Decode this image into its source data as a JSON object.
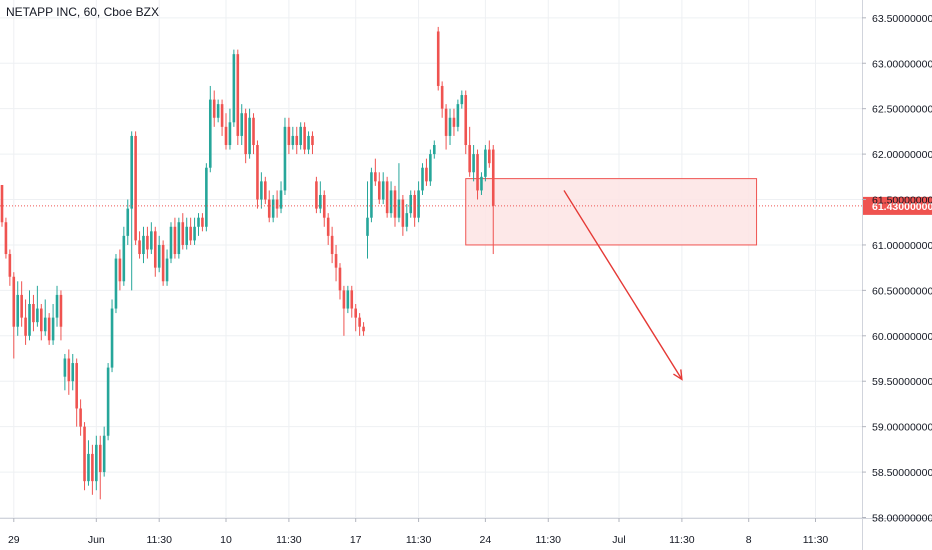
{
  "chart_data": {
    "type": "candlestick",
    "title": "NETAPP INC, 60, Cboe BZX",
    "y_ticks": [
      "58.00000000",
      "58.50000000",
      "59.00000000",
      "59.50000000",
      "60.00000000",
      "60.50000000",
      "61.00000000",
      "61.50000000",
      "62.00000000",
      "62.50000000",
      "63.00000000",
      "63.50000000"
    ],
    "y_tick_values": [
      58.0,
      58.5,
      59.0,
      59.5,
      60.0,
      60.5,
      61.0,
      61.5,
      62.0,
      62.5,
      63.0,
      63.5
    ],
    "ylim": [
      57.95,
      63.62
    ],
    "x_ticks": [
      {
        "label": "29",
        "bar": 3
      },
      {
        "label": "Jun",
        "bar": 24
      },
      {
        "label": "11:30",
        "bar": 40
      },
      {
        "label": "10",
        "bar": 57
      },
      {
        "label": "11:30",
        "bar": 73
      },
      {
        "label": "17",
        "bar": 90
      },
      {
        "label": "11:30",
        "bar": 106
      },
      {
        "label": "24",
        "bar": 123
      },
      {
        "label": "11:30",
        "bar": 139
      },
      {
        "label": "Jul",
        "bar": 157
      },
      {
        "label": "11:30",
        "bar": 173
      },
      {
        "label": "8",
        "bar": 190
      },
      {
        "label": "11:30",
        "bar": 207
      }
    ],
    "current_price": 61.43,
    "current_price_label": "61.43000000",
    "colors": {
      "up": "#26a69a",
      "down": "#ef5350",
      "arrow": "#e53935",
      "zone_fill": "#fde4e4",
      "zone_border": "#ef5350",
      "price_tag": "#ef5350"
    },
    "zone": {
      "bar_start": 118,
      "bar_end": 192,
      "top": 61.73,
      "bottom": 61.0
    },
    "arrow": {
      "from_bar": 143,
      "from_price": 61.6,
      "to_bar": 173,
      "to_price": 59.52
    },
    "candles": [
      [
        61.66,
        61.25,
        61.66,
        61.2
      ],
      [
        61.25,
        60.9,
        61.3,
        60.85
      ],
      [
        60.9,
        60.65,
        60.95,
        60.55
      ],
      [
        60.65,
        60.1,
        60.7,
        59.75
      ],
      [
        60.1,
        60.45,
        60.6,
        60.0
      ],
      [
        60.45,
        60.2,
        60.6,
        60.1
      ],
      [
        60.2,
        60.0,
        60.4,
        59.9
      ],
      [
        60.0,
        60.35,
        60.5,
        59.95
      ],
      [
        60.35,
        60.15,
        60.45,
        60.05
      ],
      [
        60.15,
        60.3,
        60.55,
        60.1
      ],
      [
        60.3,
        60.05,
        60.35,
        59.95
      ],
      [
        60.05,
        60.2,
        60.4,
        60.0
      ],
      [
        60.2,
        59.95,
        60.25,
        59.9
      ],
      [
        59.95,
        60.2,
        60.35,
        59.9
      ],
      [
        60.2,
        60.45,
        60.55,
        60.1
      ],
      [
        60.45,
        60.1,
        60.5,
        59.95
      ],
      [
        59.55,
        59.75,
        59.8,
        59.4
      ],
      [
        59.75,
        59.5,
        59.85,
        59.35
      ],
      [
        59.5,
        59.7,
        59.8,
        59.4
      ],
      [
        59.7,
        59.2,
        59.75,
        59.0
      ],
      [
        59.2,
        59.0,
        59.3,
        58.9
      ],
      [
        59.0,
        58.4,
        59.05,
        58.3
      ],
      [
        58.4,
        58.7,
        58.85,
        58.35
      ],
      [
        58.7,
        58.4,
        58.8,
        58.25
      ],
      [
        58.4,
        58.8,
        58.9,
        58.3
      ],
      [
        58.8,
        58.5,
        58.9,
        58.2
      ],
      [
        58.5,
        58.9,
        59.0,
        58.45
      ],
      [
        58.9,
        59.65,
        59.7,
        58.85
      ],
      [
        59.65,
        60.3,
        60.4,
        59.6
      ],
      [
        60.3,
        60.85,
        60.9,
        60.25
      ],
      [
        60.85,
        60.6,
        60.95,
        60.5
      ],
      [
        60.6,
        61.1,
        61.2,
        60.55
      ],
      [
        61.1,
        61.4,
        61.5,
        61.0
      ],
      [
        61.4,
        62.2,
        62.25,
        60.5
      ],
      [
        62.2,
        61.05,
        62.25,
        61.0
      ],
      [
        61.05,
        60.9,
        61.15,
        60.85
      ],
      [
        60.9,
        61.1,
        61.2,
        60.8
      ],
      [
        61.1,
        60.95,
        61.2,
        60.85
      ],
      [
        60.95,
        61.15,
        61.25,
        60.9
      ],
      [
        61.15,
        60.75,
        61.2,
        60.65
      ],
      [
        60.75,
        61.0,
        61.1,
        60.7
      ],
      [
        61.0,
        60.6,
        61.05,
        60.55
      ],
      [
        60.6,
        60.85,
        60.95,
        60.55
      ],
      [
        60.85,
        61.2,
        61.25,
        60.8
      ],
      [
        61.2,
        60.9,
        61.3,
        60.85
      ],
      [
        60.9,
        61.25,
        61.3,
        60.85
      ],
      [
        61.25,
        61.0,
        61.35,
        60.95
      ],
      [
        61.0,
        61.2,
        61.3,
        60.95
      ],
      [
        61.2,
        61.05,
        61.3,
        61.0
      ],
      [
        61.05,
        61.2,
        61.3,
        61.0
      ],
      [
        61.2,
        61.3,
        61.35,
        61.1
      ],
      [
        61.3,
        61.2,
        61.35,
        61.15
      ],
      [
        61.2,
        61.85,
        61.9,
        61.15
      ],
      [
        61.85,
        62.6,
        62.75,
        61.8
      ],
      [
        62.6,
        62.4,
        62.7,
        62.3
      ],
      [
        62.4,
        62.55,
        62.6,
        62.35
      ],
      [
        62.55,
        62.3,
        62.6,
        62.2
      ],
      [
        62.3,
        62.1,
        62.45,
        62.05
      ],
      [
        62.1,
        62.35,
        62.5,
        62.05
      ],
      [
        62.35,
        63.1,
        63.15,
        62.3
      ],
      [
        63.1,
        62.2,
        63.15,
        62.1
      ],
      [
        62.2,
        62.45,
        62.55,
        62.1
      ],
      [
        62.45,
        62.0,
        62.5,
        61.9
      ],
      [
        62.0,
        62.4,
        62.5,
        61.95
      ],
      [
        62.4,
        62.1,
        62.45,
        62.0
      ],
      [
        62.1,
        61.5,
        62.15,
        61.4
      ],
      [
        61.5,
        61.7,
        61.8,
        61.4
      ],
      [
        61.7,
        61.5,
        61.75,
        61.45
      ],
      [
        61.5,
        61.3,
        61.6,
        61.25
      ],
      [
        61.3,
        61.5,
        61.55,
        61.25
      ],
      [
        61.5,
        61.4,
        61.6,
        61.3
      ],
      [
        61.4,
        61.6,
        61.7,
        61.35
      ],
      [
        61.6,
        62.3,
        62.4,
        61.55
      ],
      [
        62.3,
        62.1,
        62.4,
        62.0
      ],
      [
        62.1,
        62.2,
        62.3,
        62.05
      ],
      [
        62.2,
        62.1,
        62.3,
        62.0
      ],
      [
        62.1,
        62.3,
        62.35,
        62.05
      ],
      [
        62.3,
        62.05,
        62.35,
        62.0
      ],
      [
        62.05,
        62.2,
        62.25,
        62.0
      ],
      [
        62.2,
        62.1,
        62.25,
        62.0
      ],
      [
        61.7,
        61.4,
        61.75,
        61.35
      ],
      [
        61.4,
        61.55,
        61.7,
        61.35
      ],
      [
        61.55,
        61.3,
        61.6,
        61.2
      ],
      [
        61.3,
        61.1,
        61.35,
        61.0
      ],
      [
        61.1,
        60.9,
        61.2,
        60.8
      ],
      [
        60.9,
        60.75,
        61.0,
        60.6
      ],
      [
        60.75,
        60.5,
        60.8,
        60.4
      ],
      [
        60.5,
        60.3,
        60.55,
        60.0
      ],
      [
        60.3,
        60.5,
        60.55,
        60.25
      ],
      [
        60.5,
        60.3,
        60.55,
        60.2
      ],
      [
        60.3,
        60.2,
        60.35,
        60.05
      ],
      [
        60.2,
        60.1,
        60.25,
        60.0
      ],
      [
        60.1,
        60.05,
        60.15,
        60.0
      ],
      [
        61.1,
        61.3,
        61.7,
        60.85
      ],
      [
        61.3,
        61.8,
        61.85,
        61.25
      ],
      [
        61.8,
        61.7,
        61.95,
        61.65
      ],
      [
        61.7,
        61.5,
        61.8,
        61.45
      ],
      [
        61.5,
        61.7,
        61.8,
        61.45
      ],
      [
        61.7,
        61.35,
        61.75,
        61.3
      ],
      [
        61.35,
        61.6,
        61.7,
        61.3
      ],
      [
        61.6,
        61.3,
        61.65,
        61.2
      ],
      [
        61.3,
        61.5,
        61.9,
        61.25
      ],
      [
        61.5,
        61.2,
        61.55,
        61.1
      ],
      [
        61.2,
        61.35,
        61.45,
        61.15
      ],
      [
        61.35,
        61.55,
        61.6,
        61.3
      ],
      [
        61.55,
        61.3,
        61.6,
        61.2
      ],
      [
        61.3,
        61.6,
        61.7,
        61.25
      ],
      [
        61.6,
        61.85,
        61.9,
        61.55
      ],
      [
        61.85,
        61.7,
        61.95,
        61.65
      ],
      [
        61.7,
        62.0,
        62.05,
        61.65
      ],
      [
        62.0,
        62.1,
        62.15,
        61.95
      ],
      [
        63.35,
        62.75,
        63.4,
        62.7
      ],
      [
        62.75,
        62.5,
        62.8,
        62.4
      ],
      [
        62.5,
        62.2,
        62.55,
        62.05
      ],
      [
        62.2,
        62.4,
        62.5,
        62.1
      ],
      [
        62.4,
        62.3,
        62.5,
        62.2
      ],
      [
        62.3,
        62.55,
        62.6,
        62.25
      ],
      [
        62.55,
        62.65,
        62.7,
        62.5
      ],
      [
        62.65,
        62.1,
        62.7,
        62.0
      ],
      [
        62.1,
        61.8,
        62.3,
        61.75
      ],
      [
        61.8,
        62.0,
        62.1,
        61.7
      ],
      [
        62.0,
        61.6,
        62.05,
        61.5
      ],
      [
        61.6,
        61.75,
        61.8,
        61.55
      ],
      [
        61.75,
        62.05,
        62.1,
        61.7
      ],
      [
        62.05,
        61.9,
        62.15,
        61.85
      ],
      [
        62.05,
        61.43,
        62.1,
        60.9
      ]
    ]
  }
}
